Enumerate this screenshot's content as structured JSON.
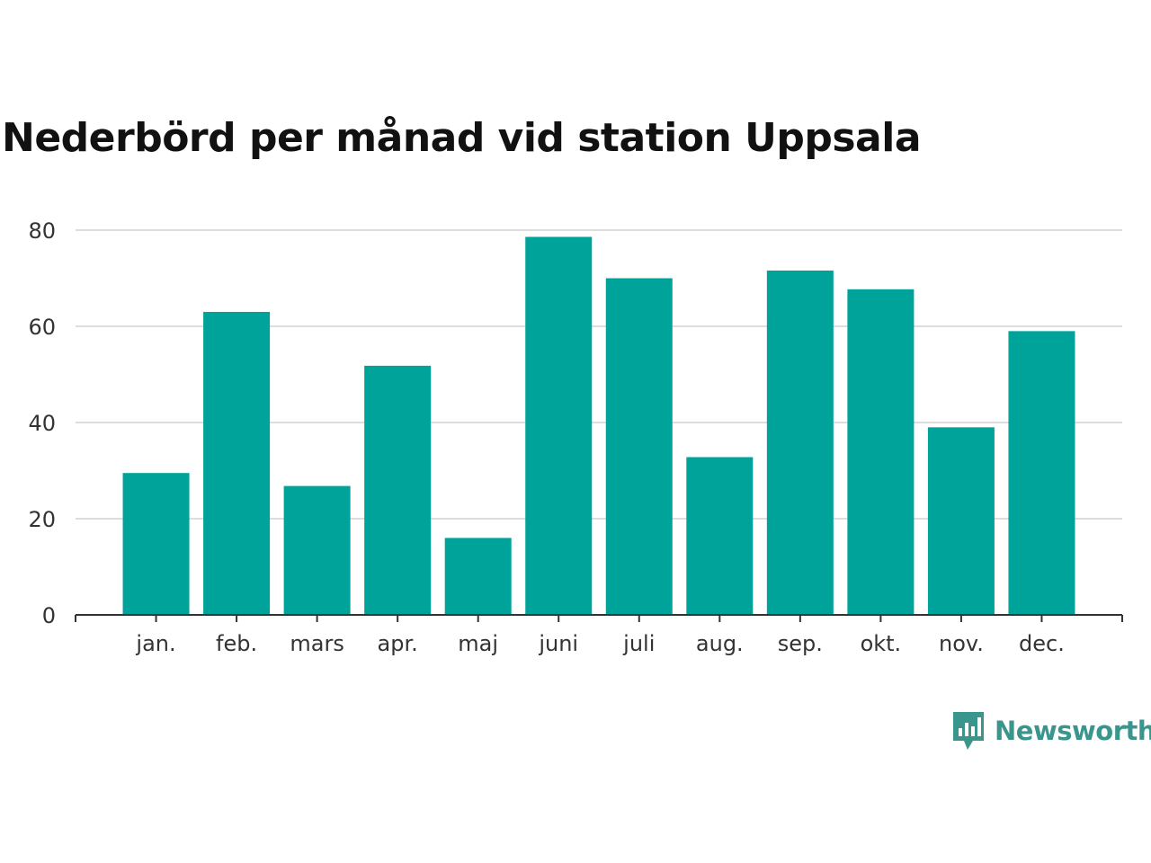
{
  "chart_data": {
    "type": "bar",
    "title": "Nederbörd per månad vid station Uppsala",
    "categories": [
      "jan.",
      "feb.",
      "mars",
      "apr.",
      "maj",
      "juni",
      "juli",
      "aug.",
      "sep.",
      "okt.",
      "nov.",
      "dec."
    ],
    "values": [
      29.5,
      63,
      26.8,
      51.8,
      16,
      78.6,
      70,
      32.8,
      71.6,
      67.7,
      39,
      59
    ],
    "yticks": [
      0,
      20,
      40,
      60,
      80
    ],
    "ylim": [
      0,
      80
    ],
    "grid": true,
    "bar_color": "#00a39a",
    "xlabel": "",
    "ylabel": ""
  },
  "branding": {
    "name": "Newsworthy",
    "icon": "newsworthy-logo-icon",
    "color": "#3a958c"
  }
}
